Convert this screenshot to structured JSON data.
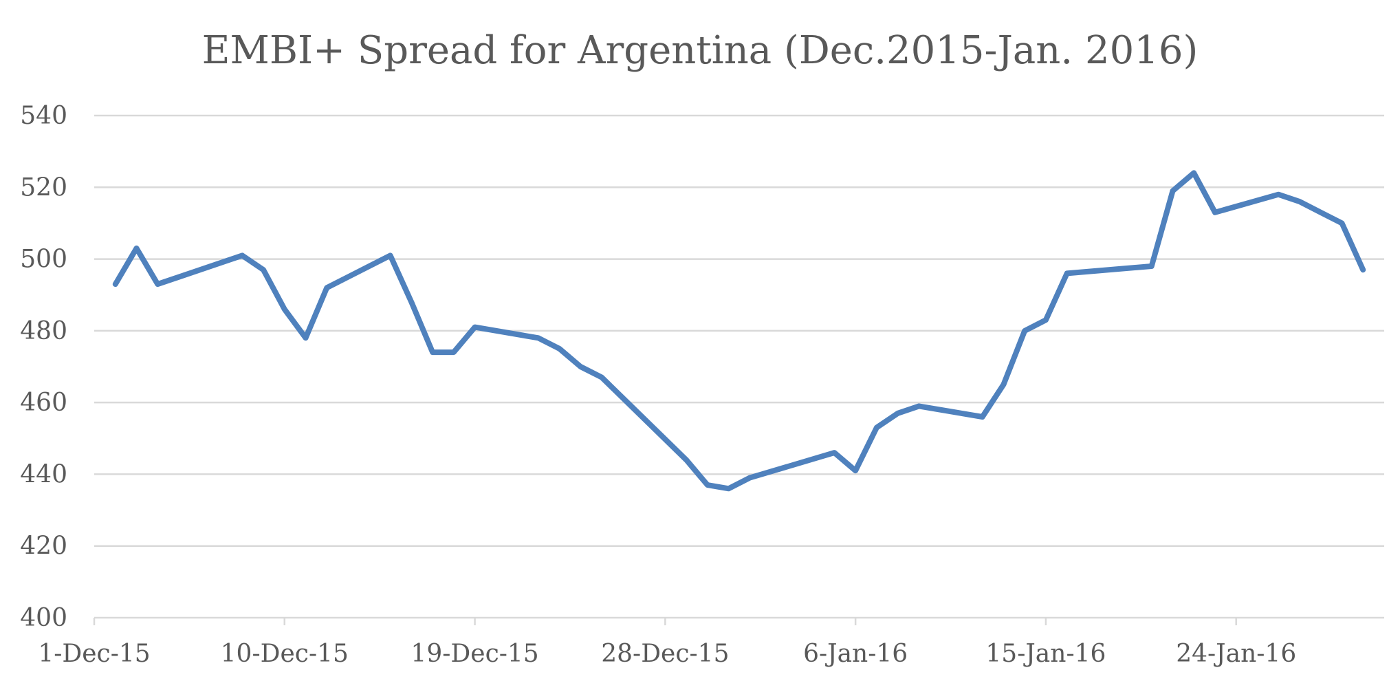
{
  "chart_data": {
    "type": "line",
    "title": "EMBI+ Spread for Argentina (Dec.2015-Jan. 2016)",
    "xlabel": "",
    "ylabel": "",
    "ylim": [
      400,
      540
    ],
    "y_ticks": [
      400,
      420,
      440,
      460,
      480,
      500,
      520,
      540
    ],
    "x_range": [
      "2015-11-30",
      "2016-01-30"
    ],
    "x_ticks": [
      {
        "date": "2015-11-30",
        "label": "1-Dec-15"
      },
      {
        "date": "2015-12-09",
        "label": "10-Dec-15"
      },
      {
        "date": "2015-12-18",
        "label": "19-Dec-15"
      },
      {
        "date": "2015-12-27",
        "label": "28-Dec-15"
      },
      {
        "date": "2016-01-05",
        "label": "6-Jan-16"
      },
      {
        "date": "2016-01-14",
        "label": "15-Jan-16"
      },
      {
        "date": "2016-01-23",
        "label": "24-Jan-16"
      }
    ],
    "grid": true,
    "legend": "none",
    "series": [
      {
        "color": "#4f81bd",
        "x": [
          "2015-12-01",
          "2015-12-02",
          "2015-12-03",
          "2015-12-07",
          "2015-12-08",
          "2015-12-09",
          "2015-12-10",
          "2015-12-11",
          "2015-12-14",
          "2015-12-15",
          "2015-12-16",
          "2015-12-17",
          "2015-12-18",
          "2015-12-21",
          "2015-12-22",
          "2015-12-23",
          "2015-12-24",
          "2015-12-28",
          "2015-12-29",
          "2015-12-30",
          "2015-12-31",
          "2016-01-04",
          "2016-01-05",
          "2016-01-06",
          "2016-01-07",
          "2016-01-08",
          "2016-01-11",
          "2016-01-12",
          "2016-01-13",
          "2016-01-14",
          "2016-01-15",
          "2016-01-19",
          "2016-01-20",
          "2016-01-21",
          "2016-01-22",
          "2016-01-25",
          "2016-01-26",
          "2016-01-27",
          "2016-01-28",
          "2016-01-29"
        ],
        "values": [
          493,
          503,
          493,
          501,
          497,
          486,
          478,
          492,
          501,
          488,
          474,
          474,
          481,
          478,
          475,
          470,
          467,
          444,
          437,
          436,
          439,
          446,
          441,
          453,
          457,
          459,
          456,
          465,
          480,
          483,
          496,
          498,
          519,
          524,
          513,
          518,
          516,
          513,
          510,
          497
        ]
      }
    ]
  }
}
